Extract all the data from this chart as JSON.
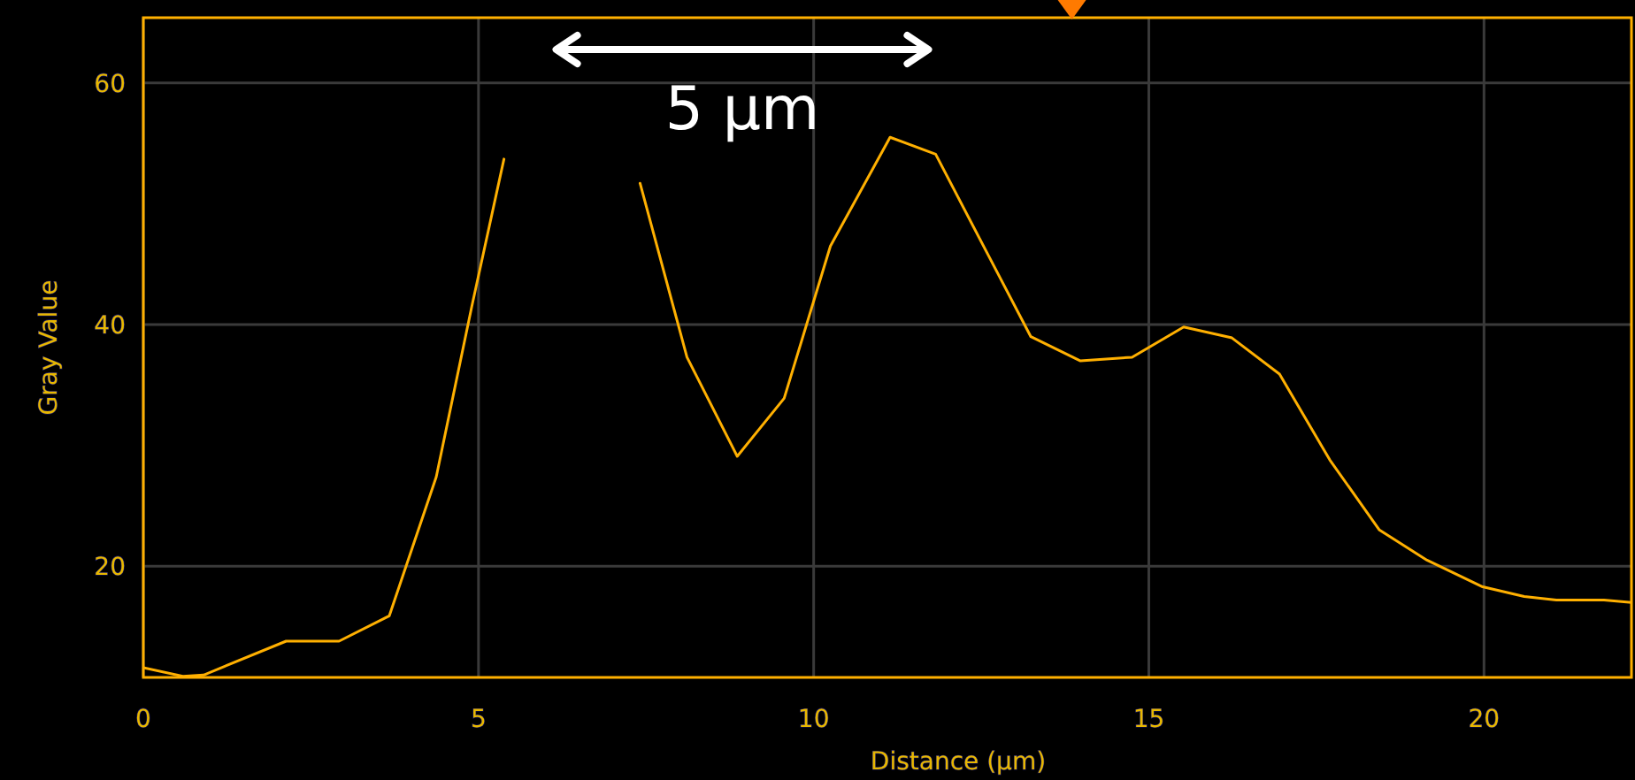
{
  "chart_data": {
    "type": "line",
    "xlabel": "Distance (µm)",
    "ylabel": "Gray Value",
    "annotations": [
      "5 µm"
    ],
    "xlim": [
      0,
      22.2
    ],
    "ylim": [
      10.8,
      65.4
    ],
    "xticks": [
      0,
      5,
      10,
      15,
      20
    ],
    "yticks": [
      20,
      40,
      60
    ],
    "grid": true,
    "series": [
      {
        "color": "#ffb000",
        "x": [
          0,
          0.59,
          0.9,
          2.13,
          2.92,
          3.67,
          4.37,
          4.9,
          5.38,
          5.9,
          6.6,
          7.41,
          8.11,
          8.86,
          9.56,
          10.25,
          11.14,
          11.82,
          12.59,
          13.24,
          13.98,
          14.75,
          15.52,
          16.24,
          16.95,
          17.7,
          18.44,
          19.15,
          19.98,
          20.6,
          21.08,
          21.79,
          22.2
        ],
        "values": [
          11.6,
          10.9,
          11.0,
          13.8,
          13.8,
          15.9,
          27.4,
          41.5,
          53.7,
          null,
          null,
          51.7,
          37.3,
          29.1,
          33.9,
          46.5,
          55.5,
          54.1,
          45.9,
          39.0,
          37.0,
          37.3,
          39.8,
          38.9,
          35.9,
          28.8,
          23.0,
          20.5,
          18.3,
          17.5,
          17.2,
          17.2,
          17.0
        ]
      }
    ]
  }
}
